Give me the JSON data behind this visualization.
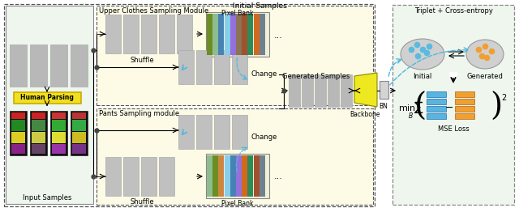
{
  "fig_width": 6.4,
  "fig_height": 2.62,
  "dpi": 100,
  "bg_color": "#ffffff",
  "light_green": "#eef6ee",
  "light_yellow": "#fdfbe6",
  "title_initial": "Initial Samples",
  "label_input": "Input Samples",
  "label_upper": "Upper Clothes Sampling Module",
  "label_pants": "Pants Sampling module",
  "label_pixel_bank1": "Pixel Bank",
  "label_pixel_bank2": "Pixel Bank",
  "label_shuffle1": "Shuffle",
  "label_shuffle2": "Shuffle",
  "label_change1": "Change",
  "label_change2": "Change",
  "label_generated": "Generated Samples",
  "label_backbone": "Backbone",
  "label_bn": "BN",
  "label_triplet": "Triplet + Cross-entropy",
  "label_initial": "Initial",
  "label_gen": "Generated",
  "label_mse": "MSE Loss",
  "label_human": "Human Parsing",
  "blue_dot": "#5abadf",
  "orange_dot": "#f0a030",
  "yellow_fill": "#eee820",
  "arrow_blue": "#50b8e0",
  "stripe_colors": [
    "#6b8e23",
    "#8fbc8f",
    "#4682b4",
    "#87ceeb",
    "#9370db",
    "#8b7355",
    "#a0522d",
    "#2e8b57",
    "#d2691e",
    "#708090"
  ],
  "stripe_colors2": [
    "#8fbc8f",
    "#6b8e23",
    "#cd853f",
    "#87ceeb",
    "#4682b4",
    "#9370db",
    "#d2691e",
    "#2e8b57",
    "#a0522d",
    "#708090"
  ]
}
